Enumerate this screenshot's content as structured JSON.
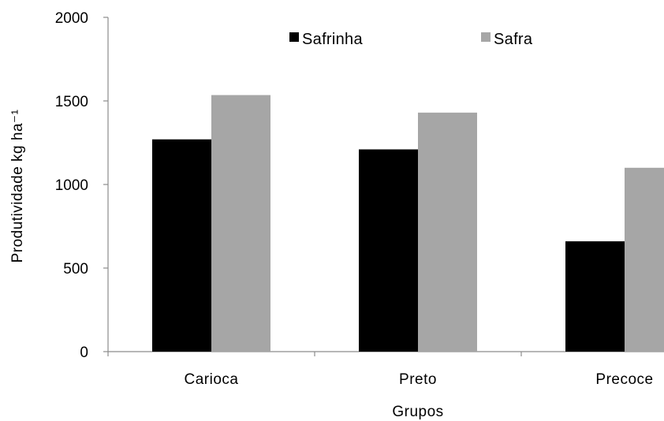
{
  "chart_data": {
    "type": "bar",
    "categories": [
      "Carioca",
      "Preto",
      "Precoce"
    ],
    "series": [
      {
        "name": "Safrinha",
        "values": [
          1270,
          1210,
          660
        ],
        "color": "#000000"
      },
      {
        "name": "Safra",
        "values": [
          1535,
          1430,
          1100
        ],
        "color": "#a6a6a6"
      }
    ],
    "xlabel": "Grupos",
    "ylabel": "Produtividade kg ha⁻¹",
    "ylim": [
      0,
      2000
    ],
    "yticks": [
      0,
      500,
      1000,
      1500,
      2000
    ],
    "grid": false,
    "legend": "top"
  }
}
